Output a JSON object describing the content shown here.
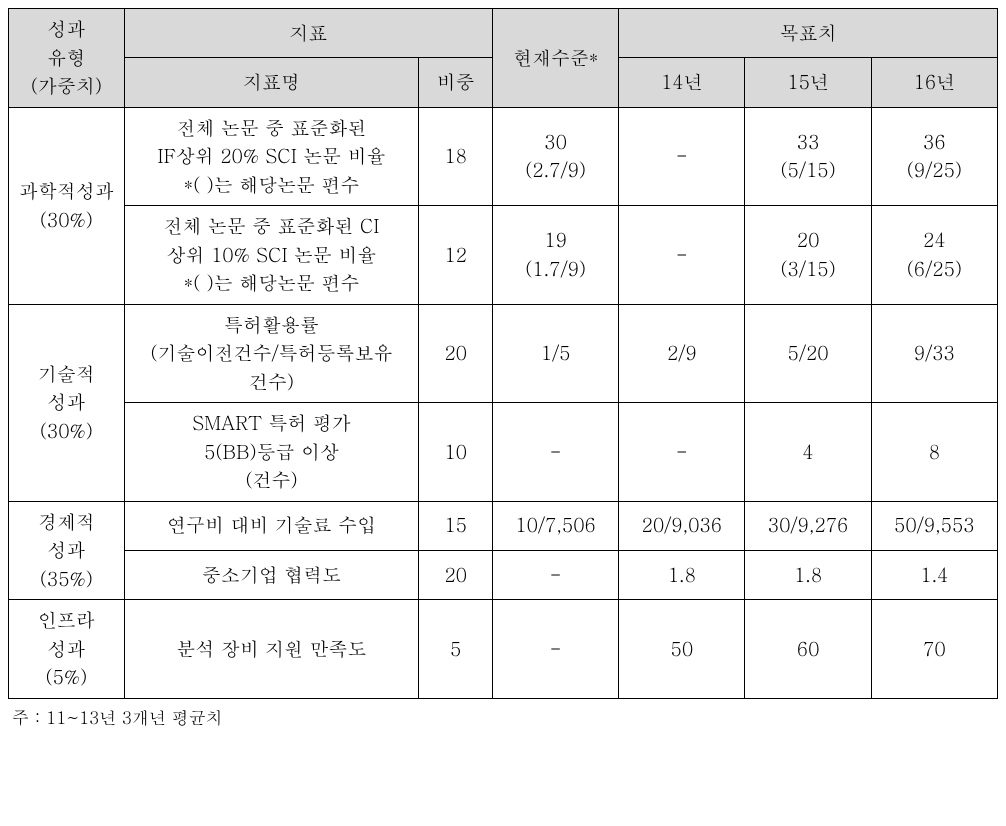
{
  "headers": {
    "type": "성과\n유형\n(가중치)",
    "indicator_group": "지표",
    "indicator_name": "지표명",
    "indicator_weight": "비중",
    "current": "현재수준*",
    "target_group": "목표치",
    "y14": "14년",
    "y15": "15년",
    "y16": "16년"
  },
  "categories": [
    {
      "label": "과학적성과\n(30%)",
      "rows": [
        {
          "indicator": "전체 논문 중 표준화된\nIF상위 20% SCI 논문 비율\n*( )는 해당논문 편수",
          "weight": "18",
          "current": "30\n(2.7/9)",
          "y14": "-",
          "y15": "33\n(5/15)",
          "y16": "36\n(9/25)"
        },
        {
          "indicator": "전체 논문 중 표준화된 CI\n상위 10% SCI 논문 비율\n*( )는 해당논문 편수",
          "weight": "12",
          "current": "19\n(1.7/9)",
          "y14": "-",
          "y15": "20\n(3/15)",
          "y16": "24\n(6/25)"
        }
      ]
    },
    {
      "label": "기술적\n성과\n(30%)",
      "rows": [
        {
          "indicator": "특허활용률\n(기술이전건수/특허등록보유\n건수)",
          "weight": "20",
          "current": "1/5",
          "y14": "2/9",
          "y15": "5/20",
          "y16": "9/33"
        },
        {
          "indicator": "SMART 특허 평가\n5(BB)등급 이상\n(건수)",
          "weight": "10",
          "current": "-",
          "y14": "-",
          "y15": "4",
          "y16": "8"
        }
      ]
    },
    {
      "label": "경제적\n성과\n(35%)",
      "rows": [
        {
          "indicator": "연구비 대비 기술료 수입",
          "weight": "15",
          "current": "10/7,506",
          "y14": "20/9,036",
          "y15": "30/9,276",
          "y16": "50/9,553"
        },
        {
          "indicator": "중소기업 협력도",
          "weight": "20",
          "current": "-",
          "y14": "1.8",
          "y15": "1.8",
          "y16": "1.4"
        }
      ]
    },
    {
      "label": "인프라\n성과\n(5%)",
      "rows": [
        {
          "indicator": "분석 장비 지원 만족도",
          "weight": "5",
          "current": "-",
          "y14": "50",
          "y15": "60",
          "y16": "70"
        }
      ]
    }
  ],
  "footnote": "주 : 11~13년 3개년 평균치"
}
